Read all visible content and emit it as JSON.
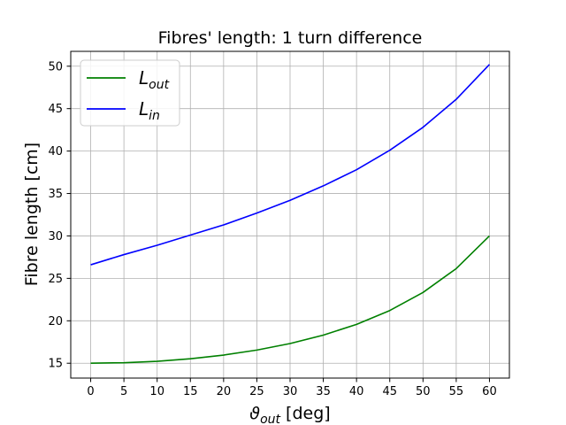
{
  "chart_data": {
    "type": "line",
    "title": "Fibres' length: 1 turn difference",
    "xlabel": {
      "main": "ϑ",
      "sub": "out",
      "suffix": " [deg]"
    },
    "ylabel": "Fibre length [cm]",
    "xlim": [
      -3,
      63
    ],
    "ylim": [
      13.25,
      51.75
    ],
    "xticks": [
      0,
      5,
      10,
      15,
      20,
      25,
      30,
      35,
      40,
      45,
      50,
      55,
      60
    ],
    "yticks": [
      15,
      20,
      25,
      30,
      35,
      40,
      45,
      50
    ],
    "grid": true,
    "legend": "top-left",
    "x": [
      0,
      5,
      10,
      15,
      20,
      25,
      30,
      35,
      40,
      45,
      50,
      55,
      60
    ],
    "series": [
      {
        "name": "L",
        "name_sub": "out",
        "color": "#008000",
        "values": [
          15.0,
          15.06,
          15.23,
          15.53,
          15.96,
          16.55,
          17.32,
          18.31,
          19.58,
          21.21,
          23.34,
          26.15,
          30.0
        ]
      },
      {
        "name": "L",
        "name_sub": "in",
        "color": "#0000ff",
        "values": [
          26.6,
          27.8,
          28.9,
          30.1,
          31.3,
          32.7,
          34.2,
          35.9,
          37.8,
          40.1,
          42.8,
          46.1,
          50.2
        ]
      }
    ]
  }
}
